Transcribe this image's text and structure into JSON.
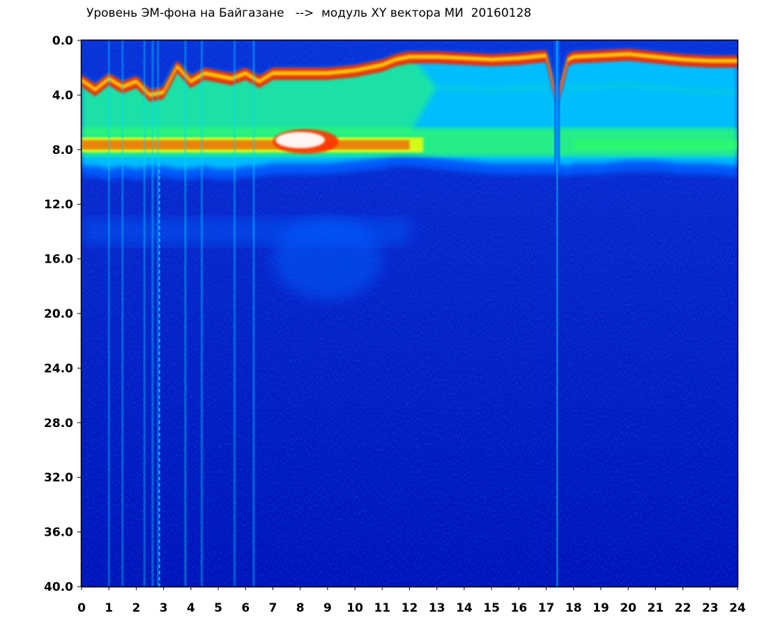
{
  "title": "Уровень ЭМ-фона на Байгазане   -->  модуль XY вектора МИ  20160128",
  "chart_data": {
    "type": "heatmap",
    "title": "Уровень ЭМ-фона на Байгазане   -->  модуль XY вектора МИ  20160128",
    "xlabel": "",
    "ylabel": "",
    "xlim": [
      0,
      24
    ],
    "ylim": [
      0,
      40
    ],
    "y_inverted": true,
    "x_ticks": [
      "0",
      "1",
      "2",
      "3",
      "4",
      "5",
      "6",
      "7",
      "8",
      "9",
      "10",
      "11",
      "12",
      "13",
      "14",
      "15",
      "16",
      "17",
      "18",
      "19",
      "20",
      "21",
      "22",
      "23",
      "24"
    ],
    "y_ticks": [
      "0.0",
      "4.0",
      "8.0",
      "12.0",
      "16.0",
      "20.0",
      "24.0",
      "28.0",
      "32.0",
      "36.0",
      "40.0"
    ],
    "colormap": [
      "#0018c8",
      "#0060ff",
      "#00d8ff",
      "#30ff60",
      "#ffff00",
      "#ff2000",
      "#ffffff"
    ],
    "background_color": "#0a14c0",
    "intense_band": {
      "description_values": "upper edge of signal (y) vs hour (x)",
      "x": [
        0,
        0.5,
        1,
        1.5,
        2,
        2.5,
        3,
        3.5,
        4,
        4.5,
        5,
        5.5,
        6,
        6.5,
        7,
        8,
        9,
        10,
        11,
        11.5,
        12,
        13,
        14,
        15,
        16,
        17,
        17.4,
        17.8,
        18,
        19,
        20,
        21,
        22,
        23,
        24
      ],
      "top": [
        2.5,
        3.2,
        2.4,
        3.0,
        2.6,
        3.6,
        3.4,
        1.5,
        2.6,
        2.0,
        2.2,
        2.4,
        2.0,
        2.6,
        2.0,
        2.0,
        2.0,
        1.8,
        1.4,
        1.0,
        0.8,
        0.8,
        0.9,
        1.0,
        0.9,
        0.7,
        4.0,
        1.0,
        0.8,
        0.7,
        0.6,
        0.8,
        1.0,
        1.1,
        1.1
      ],
      "bottom": [
        8.6,
        8.6,
        8.8,
        8.6,
        8.8,
        8.6,
        8.6,
        8.8,
        8.8,
        8.6,
        8.8,
        8.8,
        8.6,
        8.6,
        8.4,
        8.4,
        8.4,
        8.2,
        8.0,
        7.8,
        7.8,
        8.0,
        8.2,
        8.4,
        8.4,
        8.4,
        8.4,
        8.6,
        8.4,
        8.4,
        8.2,
        8.2,
        8.4,
        8.4,
        8.6
      ],
      "hot_line": 7.6
    },
    "secondary_band": {
      "y": [
        13.0,
        15.0
      ],
      "x_range": [
        0,
        12
      ],
      "diffuse_patch": {
        "x": [
          7,
          11
        ],
        "y": [
          13,
          19
        ]
      }
    },
    "vertical_spikes_x": [
      1.0,
      1.5,
      2.3,
      2.6,
      2.8,
      3.8,
      4.4,
      5.6,
      6.3,
      17.4
    ]
  }
}
